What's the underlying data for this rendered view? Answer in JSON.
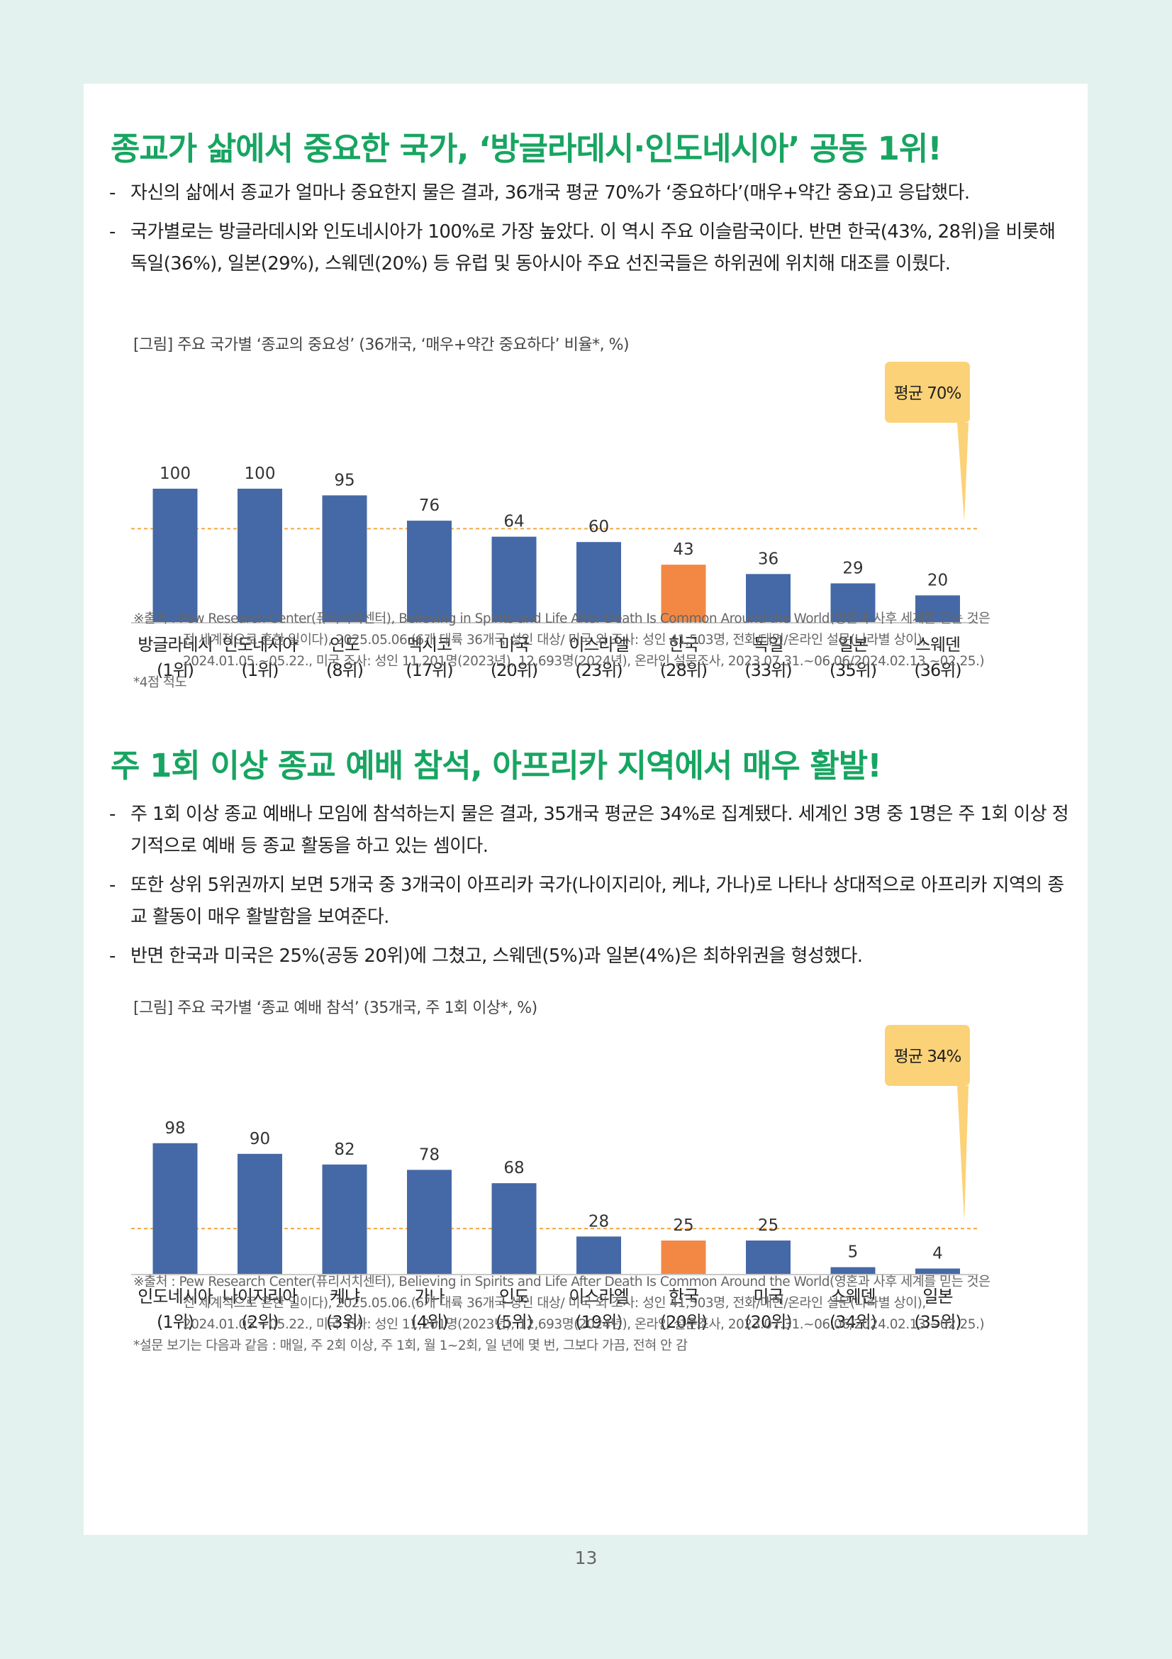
{
  "section1": {
    "heading": "종교가 삶에서 중요한 국가, ‘방글라데시·인도네시아’ 공동 1위!",
    "bullets": [
      "자신의 삶에서 종교가 얼마나 중요한지 물은 결과, 36개국 평균 70%가 ‘중요하다’(매우+약간 중요)고 응답했다.",
      "국가별로는 방글라데시와 인도네시아가 100%로 가장 높았다. 이 역시 주요 이슬람국이다. 반면 한국(43%, 28위)을 비롯해 독일(36%), 일본(29%), 스웨덴(20%) 등 유럽 및 동아시아 주요 선진국들은 하위권에 위치해 대조를 이뤘다."
    ],
    "caption": "[그림] 주요 국가별 ‘종교의 중요성’ (36개국, ‘매우+약간 중요하다’ 비율*, %)",
    "source": [
      "※출처 : Pew Research Center(퓨리서치센터), Believing in Spirits and Life After Death Is Common Around the World(영혼과 사후 세계를 믿는 것은",
      "전 세계적으로 흔한 일이다), 2025.05.06.(6개 대륙 36개국 성인 대상/ 미국 외 조사: 성인 41,503명, 전화/대면/온라인 설문(나라별 상이),",
      "2024.01.05.~05.22., 미국 조사: 성인 11,201명(2023년), 12,693명(2024년), 온라인 설문조사, 2023.07.31.~06.06/2024.02.13.~02.25.)",
      "*4점 척도"
    ]
  },
  "section2": {
    "heading": "주 1회 이상 종교 예배 참석, 아프리카 지역에서 매우 활발!",
    "bullets": [
      "주 1회 이상 종교 예배나 모임에 참석하는지 물은 결과, 35개국 평균은 34%로 집계됐다. 세계인 3명 중 1명은 주 1회 이상 정기적으로 예배 등 종교 활동을 하고 있는 셈이다.",
      "또한 상위 5위권까지 보면 5개국 중 3개국이 아프리카 국가(나이지리아, 케냐, 가나)로 나타나 상대적으로 아프리카 지역의 종교 활동이 매우 활발함을 보여준다.",
      "반면 한국과 미국은 25%(공동 20위)에 그쳤고, 스웨덴(5%)과 일본(4%)은 최하위권을 형성했다."
    ],
    "caption": "[그림] 주요 국가별 ‘종교 예배 참석’ (35개국, 주 1회 이상*, %)",
    "source": [
      "※출처 : Pew Research Center(퓨리서치센터), Believing in Spirits and Life After Death Is Common Around the World(영혼과 사후 세계를 믿는 것은",
      "전 세계적으로 흔한 일이다), 2025.05.06.(6개 대륙 36개국 성인 대상/ 미국 외 조사: 성인 41,503명, 전화/대면/온라인 설문(나라별 상이),",
      "2024.01.05.~05.22., 미국 조사: 성인 11,201명(2023년), 12,693명(2024년), 온라인 설문조사, 2023.07.31.~06.06/2024.02.13.~02.25.)",
      "*설문 보기는 다음과 같음 : 매일, 주 2회 이상, 주 1회, 월 1~2회, 일 년에 몇 번, 그보다 가끔, 전혀 안 감"
    ]
  },
  "chart_data": [
    {
      "type": "bar",
      "categories": [
        "방글라데시",
        "인도네시아",
        "인도",
        "멕시코",
        "미국",
        "이스라엘",
        "한국",
        "독일",
        "일본",
        "스웨덴"
      ],
      "ranks": [
        "(1위)",
        "(1위)",
        "(8위)",
        "(17위)",
        "(20위)",
        "(23위)",
        "(28위)",
        "(33위)",
        "(35위)",
        "(36위)"
      ],
      "values": [
        100,
        100,
        95,
        76,
        64,
        60,
        43,
        36,
        29,
        20
      ],
      "highlight_index": 6,
      "average": 70,
      "average_label": "평균 70%",
      "ylim": [
        0,
        100
      ],
      "colors": {
        "bar": "#4569a6",
        "highlight": "#f28844",
        "average_line": "#f4a640",
        "callout": "#fbd277"
      }
    },
    {
      "type": "bar",
      "categories": [
        "인도네시아",
        "나이지리아",
        "케냐",
        "가나",
        "인도",
        "이스라엘",
        "한국",
        "미국",
        "스웨덴",
        "일본"
      ],
      "ranks": [
        "(1위)",
        "(2위)",
        "(3위)",
        "(4위)",
        "(5위)",
        "(19위)",
        "(20위)",
        "(20위)",
        "(34위)",
        "(35위)"
      ],
      "values": [
        98,
        90,
        82,
        78,
        68,
        28,
        25,
        25,
        5,
        4
      ],
      "highlight_index": 6,
      "average": 34,
      "average_label": "평균 34%",
      "ylim": [
        0,
        100
      ],
      "colors": {
        "bar": "#4569a6",
        "highlight": "#f28844",
        "average_line": "#f4a640",
        "callout": "#fbd277"
      }
    }
  ],
  "page_number": "13"
}
